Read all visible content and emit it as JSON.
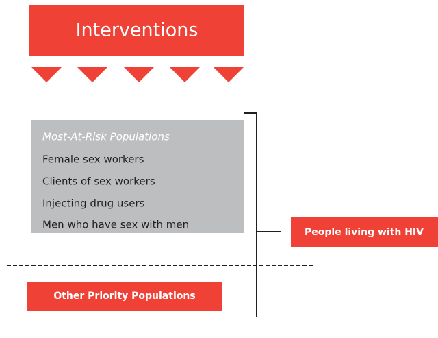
{
  "header": {
    "title": "Interventions"
  },
  "most_at_risk": {
    "title": "Most-At-Risk Populations",
    "items": [
      "Female sex workers",
      "Clients of sex workers",
      "Injecting drug users",
      "Men who have sex with men"
    ]
  },
  "outcome": "People living with HIV",
  "other": "Other Priority Populations"
}
